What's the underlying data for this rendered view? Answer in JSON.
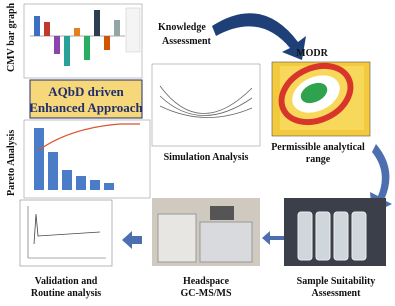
{
  "labels": {
    "cmv": "CMV bar graph",
    "knowledge": [
      "Knowledge",
      "Assessment"
    ],
    "aqbd": [
      "AQbD driven",
      "Enhanced Approach"
    ],
    "modr": "MODR",
    "pareto": "Pareto Analysis",
    "simulation": "Simulation Analysis",
    "permissible": [
      "Permissible analytical",
      "range"
    ],
    "validation": [
      "Validation and",
      "Routine analysis"
    ],
    "headspace": [
      "Headspace",
      "GC-MS/MS"
    ],
    "sample": [
      "Sample Suitability",
      "Assessment"
    ]
  }
}
